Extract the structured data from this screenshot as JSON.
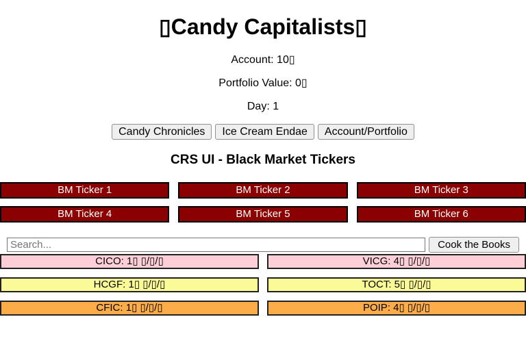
{
  "header": {
    "title": "▯Candy Capitalists▯",
    "account": "Account: 10▯",
    "portfolio_value": "Portfolio Value: 0▯",
    "day": "Day: 1"
  },
  "nav": {
    "buttons": [
      "Candy Chronicles",
      "Ice Cream Endae",
      "Account/Portfolio"
    ]
  },
  "crs": {
    "heading": "CRS UI - Black Market Tickers",
    "bm_tickers": [
      "BM Ticker 1",
      "BM Ticker 2",
      "BM Ticker 3",
      "BM Ticker 4",
      "BM Ticker 5",
      "BM Ticker 6"
    ],
    "search": {
      "placeholder": "Search...",
      "cook_button_label": "Cook the Books"
    },
    "tickers": [
      {
        "label": "CICO: 1▯ ▯/▯/▯",
        "bg": "#FFCFD8"
      },
      {
        "label": "VICG: 4▯ ▯/▯/▯",
        "bg": "#FFCFD8"
      },
      {
        "label": "HCGF: 1▯ ▯/▯/▯",
        "bg": "#FAFA96"
      },
      {
        "label": "TOCT: 5▯ ▯/▯/▯",
        "bg": "#FAFA96"
      },
      {
        "label": "CFIC: 1▯ ▯/▯/▯",
        "bg": "#FCAC49"
      },
      {
        "label": "POIP: 4▯ ▯/▯/▯",
        "bg": "#FCAC49"
      }
    ]
  },
  "colors": {
    "bm_ticker_bg": "#8B0000",
    "pink": "#FFCFD8",
    "yellow": "#FAFA96",
    "orange": "#FCAC49"
  }
}
